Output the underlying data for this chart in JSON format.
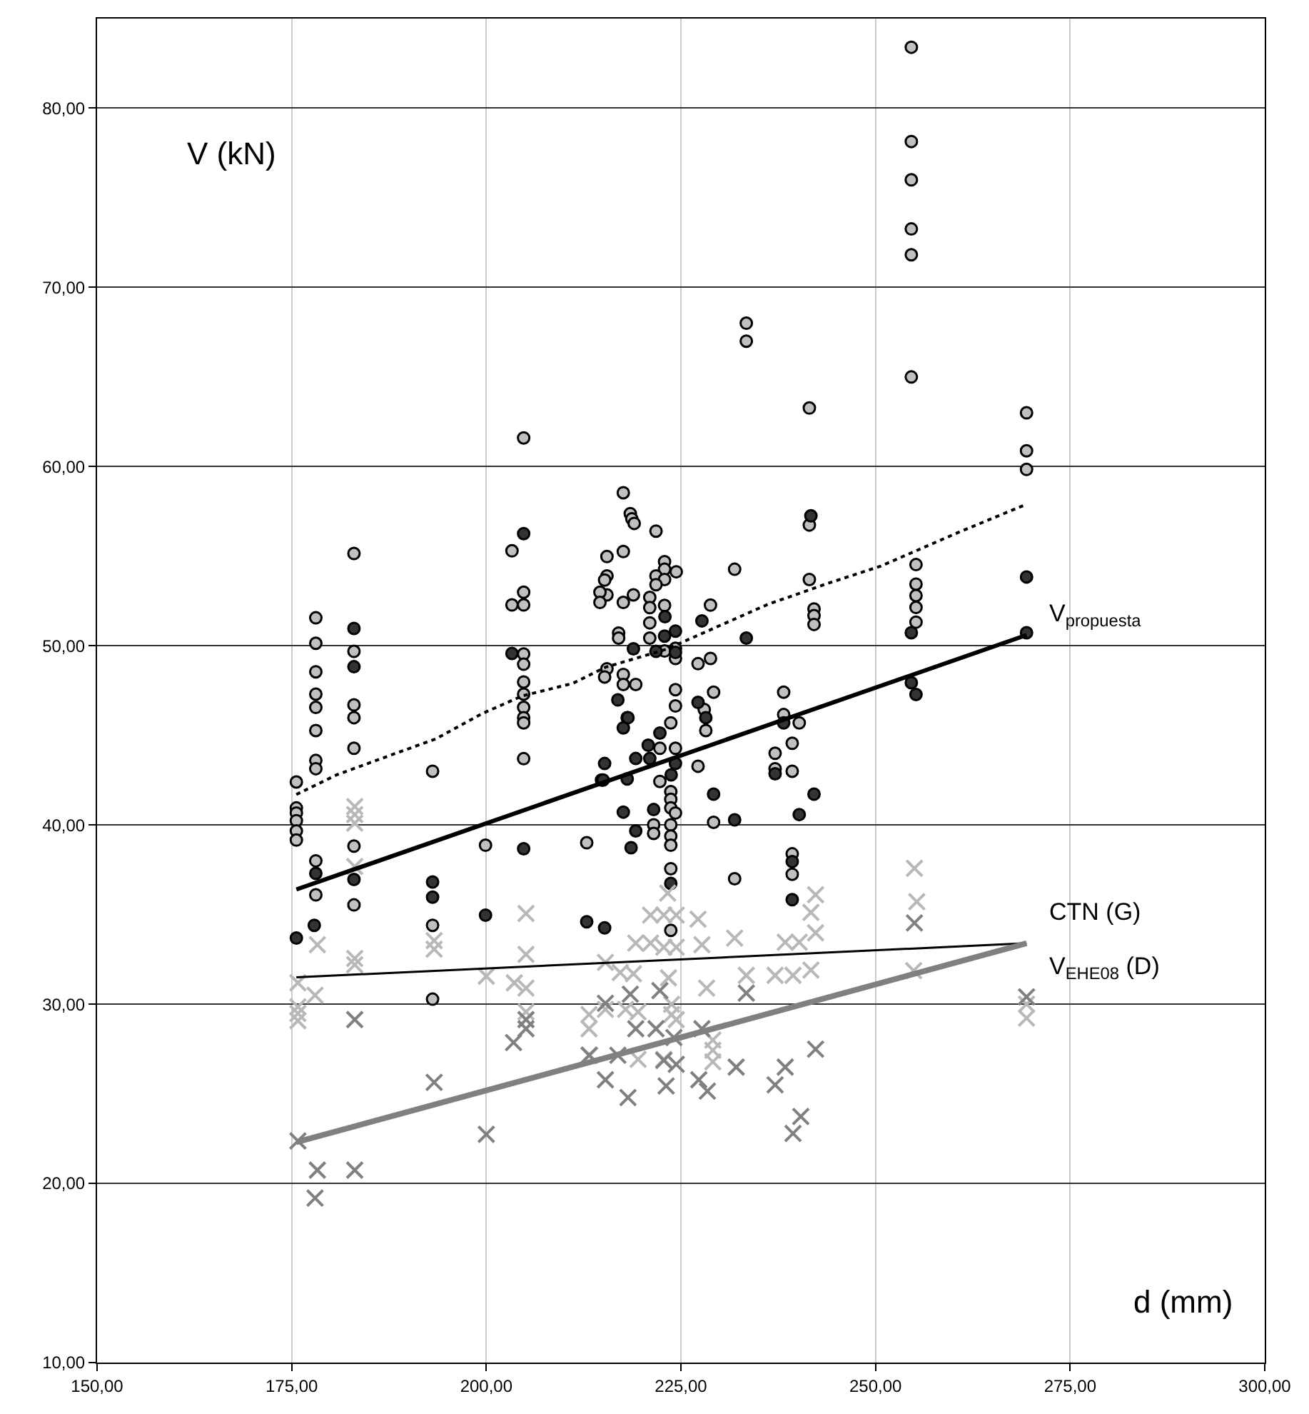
{
  "chart_data": {
    "type": "scatter",
    "xlabel": "d (mm)",
    "ylabel": "V (kN)",
    "xlim": [
      150,
      300
    ],
    "ylim": [
      10,
      85
    ],
    "xticks": [
      {
        "value": 150,
        "label": "150,00"
      },
      {
        "value": 175,
        "label": "175,00"
      },
      {
        "value": 200,
        "label": "200,00"
      },
      {
        "value": 225,
        "label": "225,00"
      },
      {
        "value": 250,
        "label": "250,00"
      },
      {
        "value": 275,
        "label": "275,00"
      },
      {
        "value": 300,
        "label": "300,00"
      }
    ],
    "yticks": [
      {
        "value": 10,
        "label": "10,00"
      },
      {
        "value": 20,
        "label": "20,00"
      },
      {
        "value": 30,
        "label": "30,00"
      },
      {
        "value": 40,
        "label": "40,00"
      },
      {
        "value": 50,
        "label": "50,00"
      },
      {
        "value": 60,
        "label": "60,00"
      },
      {
        "value": 70,
        "label": "70,00"
      },
      {
        "value": 80,
        "label": "80,00"
      }
    ],
    "grid": true,
    "series": [
      {
        "marker": "circle",
        "color": "#c0c0c0",
        "x": [
          175.6,
          175.6,
          175.6,
          175.6,
          175.6,
          175.6,
          178.1,
          178.1,
          178.1,
          178.1,
          178.1,
          178.1,
          178.1,
          178.1,
          178.1,
          178.1,
          183.0,
          183.0,
          183.0,
          183.0,
          183.0,
          183.0,
          183.0,
          193.1,
          193.1,
          193.1,
          199.9,
          203.3,
          203.3,
          204.8,
          204.8,
          204.8,
          204.8,
          204.8,
          204.8,
          204.8,
          204.8,
          204.8,
          204.8,
          204.8,
          217.6,
          218.5,
          218.7,
          219.0,
          221.8,
          215.5,
          217.6,
          215.5,
          215.2,
          215.5,
          214.6,
          214.6,
          217.6,
          218.9,
          222.9,
          222.9,
          224.4,
          221.8,
          222.9,
          221.8,
          221.0,
          221.0,
          222.9,
          221.0,
          221.0,
          217.0,
          217.0,
          222.9,
          224.3,
          224.3,
          231.9,
          228.8,
          227.2,
          228.8,
          215.5,
          215.2,
          217.6,
          217.6,
          219.2,
          224.3,
          224.3,
          223.7,
          229.2,
          218.1,
          228.0,
          228.2,
          222.3,
          224.3,
          227.2,
          214.8,
          222.3,
          223.7,
          223.7,
          223.7,
          224.3,
          221.5,
          221.5,
          223.7,
          223.7,
          223.7,
          229.2,
          212.9,
          223.7,
          231.9,
          223.7,
          241.5,
          241.5,
          242.1,
          242.1,
          242.1,
          238.2,
          238.2,
          240.2,
          239.3,
          237.1,
          237.1,
          239.3,
          239.3,
          239.3,
          254.6,
          254.6,
          254.6,
          254.6,
          254.6,
          254.6,
          233.4,
          233.4,
          241.5,
          269.4,
          269.4,
          269.4,
          255.2,
          255.2,
          255.2,
          255.2,
          255.2
        ],
        "values": [
          42.4,
          40.95,
          40.67,
          40.24,
          39.67,
          39.16,
          51.56,
          50.14,
          48.55,
          47.3,
          46.56,
          45.27,
          43.6,
          43.14,
          38.0,
          36.1,
          55.15,
          49.69,
          46.7,
          45.99,
          44.28,
          38.82,
          35.54,
          43.0,
          34.4,
          30.28,
          38.87,
          55.3,
          52.28,
          61.6,
          52.99,
          52.28,
          49.54,
          48.97,
          47.98,
          47.3,
          46.56,
          45.99,
          45.7,
          43.7,
          58.54,
          57.37,
          57.08,
          56.83,
          56.4,
          54.98,
          55.26,
          53.9,
          53.67,
          52.84,
          52.99,
          52.42,
          52.42,
          52.84,
          54.69,
          54.27,
          54.13,
          53.9,
          53.7,
          53.41,
          52.7,
          52.13,
          52.25,
          51.28,
          50.43,
          50.71,
          50.43,
          49.71,
          49.29,
          49.86,
          54.27,
          52.27,
          49.0,
          49.29,
          48.72,
          48.26,
          48.4,
          47.84,
          47.84,
          47.55,
          46.64,
          45.7,
          47.41,
          45.99,
          46.44,
          45.27,
          44.28,
          44.28,
          43.28,
          42.51,
          42.43,
          41.86,
          41.43,
          40.95,
          40.67,
          40.01,
          39.53,
          40.01,
          39.38,
          38.87,
          40.15,
          39.01,
          37.56,
          37.0,
          34.12,
          56.74,
          53.7,
          52.05,
          51.68,
          51.19,
          47.41,
          46.16,
          45.7,
          44.56,
          44.0,
          43.14,
          43.0,
          38.39,
          37.25,
          83.4,
          78.14,
          76.0,
          73.26,
          71.82,
          65.0,
          68.0,
          67.0,
          63.27,
          63.0,
          60.88,
          59.84,
          54.53,
          53.44,
          52.8,
          52.14,
          51.32
        ]
      },
      {
        "marker": "circle",
        "color": "#333333",
        "x": [
          175.6,
          178.1,
          177.9,
          183.0,
          183.0,
          183.0,
          193.1,
          193.1,
          199.9,
          203.3,
          204.8,
          204.8,
          241.7,
          227.7,
          233.4,
          218.9,
          221.8,
          224.3,
          222.9,
          222.95,
          224.3,
          216.9,
          217.6,
          218.2,
          227.2,
          228.2,
          238.2,
          222.3,
          220.8,
          219.2,
          221.0,
          215.2,
          215.0,
          218.1,
          223.75,
          224.3,
          237.1,
          229.2,
          242.1,
          217.6,
          221.5,
          219.2,
          218.6,
          231.9,
          240.2,
          223.7,
          239.3,
          239.3,
          212.9,
          215.2,
          269.4,
          254.6,
          269.4,
          255.2,
          254.6
        ],
        "values": [
          33.69,
          37.3,
          34.4,
          50.97,
          48.83,
          36.96,
          36.82,
          35.97,
          34.97,
          49.57,
          56.26,
          38.67,
          57.25,
          51.39,
          50.43,
          49.83,
          49.69,
          49.63,
          50.54,
          51.62,
          50.82,
          46.98,
          45.42,
          45.99,
          46.84,
          45.99,
          45.7,
          45.13,
          44.45,
          43.71,
          43.71,
          43.43,
          42.51,
          42.57,
          42.8,
          43.43,
          42.86,
          41.72,
          41.72,
          40.72,
          40.86,
          39.67,
          38.73,
          40.29,
          40.58,
          36.74,
          37.96,
          35.83,
          34.6,
          34.26,
          53.84,
          50.73,
          50.73,
          47.28,
          47.94
        ]
      },
      {
        "marker": "cross",
        "color": "#b8b8b8",
        "x": [
          175.8,
          175.8,
          175.8,
          175.8,
          178.3,
          178.0,
          183.1,
          183.1,
          183.1,
          183.1,
          183.1,
          183.1,
          193.3,
          193.3,
          200.0,
          203.6,
          205.1,
          205.1,
          205.1,
          205.1,
          223.3,
          221.1,
          222.8,
          224.4,
          227.2,
          231.9,
          219.2,
          221.1,
          222.8,
          224.4,
          227.7,
          238.4,
          240.2,
          242.3,
          241.7,
          242.3,
          215.3,
          217.2,
          218.9,
          223.4,
          228.3,
          233.4,
          237.1,
          239.4,
          241.7,
          213.2,
          213.2,
          215.3,
          217.9,
          219.5,
          223.8,
          223.8,
          224.4,
          229.1,
          229.1,
          219.5,
          222.8,
          229.1,
          213.3,
          255.0,
          255.3,
          254.9,
          269.4,
          269.4
        ],
        "values": [
          31.19,
          29.85,
          29.48,
          29.08,
          33.32,
          30.5,
          41.03,
          40.58,
          40.1,
          37.68,
          32.55,
          32.2,
          33.55,
          33.07,
          31.56,
          31.19,
          35.06,
          32.78,
          30.9,
          29.57,
          36.2,
          34.97,
          34.97,
          34.97,
          34.74,
          33.69,
          33.41,
          33.41,
          33.18,
          33.18,
          33.32,
          33.46,
          33.46,
          36.11,
          35.12,
          33.98,
          32.33,
          31.76,
          31.7,
          31.47,
          30.9,
          31.61,
          31.61,
          31.61,
          31.9,
          29.42,
          28.63,
          29.71,
          29.71,
          29.57,
          29.99,
          29.42,
          29.14,
          28.0,
          27.43,
          26.92,
          26.92,
          26.78,
          27.15,
          37.58,
          35.72,
          31.87,
          29.22,
          30.0
        ]
      },
      {
        "marker": "cross",
        "color": "#808080",
        "x": [
          175.8,
          178.3,
          178.0,
          183.1,
          183.1,
          193.3,
          200.0,
          203.5,
          205.1,
          205.1,
          215.3,
          218.5,
          222.3,
          233.4,
          219.2,
          221.8,
          224.1,
          227.7,
          213.2,
          216.9,
          222.8,
          224.4,
          215.3,
          218.2,
          223.1,
          227.3,
          228.4,
          232.1,
          238.4,
          237.1,
          242.3,
          239.4,
          240.4,
          255.0,
          269.4
        ],
        "values": [
          22.37,
          20.74,
          19.18,
          29.14,
          20.74,
          25.64,
          22.74,
          27.86,
          29.14,
          28.63,
          30.05,
          30.56,
          30.76,
          30.62,
          28.63,
          28.63,
          28.14,
          28.63,
          27.15,
          27.15,
          26.86,
          26.64,
          25.78,
          24.79,
          25.44,
          25.78,
          25.15,
          26.49,
          26.49,
          25.5,
          27.49,
          22.79,
          23.73,
          34.53,
          30.41
        ]
      },
      {
        "type": "line",
        "marker": "none",
        "line_style": "dotted",
        "color": "#000000",
        "x": [
          175.6,
          180.8,
          189.0,
          193.5,
          199.4,
          204.6,
          211.1,
          215.3,
          223.1,
          228.3,
          236.1,
          244.0,
          250.7,
          260.5,
          269.4
        ],
        "values": [
          41.7,
          42.8,
          44.1,
          44.8,
          46.2,
          47.2,
          47.9,
          48.8,
          49.8,
          50.8,
          52.3,
          53.5,
          54.45,
          56.3,
          57.9
        ]
      },
      {
        "type": "line",
        "marker": "none",
        "line_style": "solid",
        "color": "#000000",
        "name": "V$_{propuesta}$",
        "x": [
          175.6,
          269.4
        ],
        "values": [
          36.4,
          50.6
        ]
      },
      {
        "type": "line",
        "marker": "none",
        "line_style": "solid",
        "color": "#000000",
        "name": "CTN (G)",
        "x": [
          175.6,
          269.4
        ],
        "values": [
          31.5,
          33.4
        ]
      },
      {
        "type": "line",
        "marker": "none",
        "line_style": "solid",
        "color": "#808080",
        "name": "V$_{EHE08}$ (D)",
        "x": [
          175.6,
          269.4
        ],
        "values": [
          22.3,
          33.4
        ]
      }
    ]
  }
}
